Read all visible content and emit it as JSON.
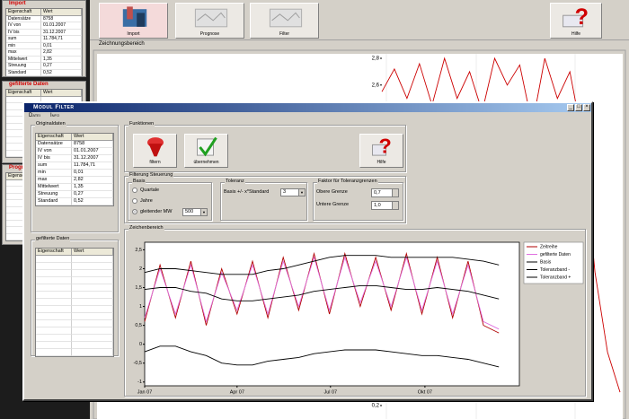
{
  "app": {
    "panels": [
      {
        "title": "Import",
        "header": [
          "Eigenschaft",
          "Wert"
        ],
        "rows": [
          [
            "Datensätze",
            "8758"
          ],
          [
            "IV von",
            "01.01.2007"
          ],
          [
            "IV bis",
            "31.12.2007"
          ],
          [
            "sum",
            "11.784,71"
          ],
          [
            "min",
            "0,01"
          ],
          [
            "max",
            "2,82"
          ],
          [
            "Mittelwert",
            "1,35"
          ],
          [
            "Streuung",
            "0,27"
          ],
          [
            "Standard",
            "0,52"
          ]
        ]
      },
      {
        "title": "gefilterte Daten",
        "header": [
          "Eigenschaft",
          "Wert"
        ]
      },
      {
        "title": "Prognose",
        "header": [
          "Eigenschaft",
          "Wert"
        ]
      }
    ],
    "toolbar": [
      "Import",
      "Prognose",
      "Filter",
      "Hilfe"
    ]
  },
  "dialog": {
    "title": "Modul Filter",
    "menu": [
      "Datei",
      "Info"
    ],
    "original": {
      "title": "Originaldaten",
      "header": [
        "Eigenschaft",
        "Wert"
      ],
      "rows": [
        [
          "Datensätze",
          "8758"
        ],
        [
          "IV von",
          "01.01.2007"
        ],
        [
          "IV bis",
          "31.12.2007"
        ],
        [
          "sum",
          "11.784,71"
        ],
        [
          "min",
          "0,01"
        ],
        [
          "max",
          "2,82"
        ],
        [
          "Mittelwert",
          "1,35"
        ],
        [
          "Streuung",
          "0,27"
        ],
        [
          "Standard",
          "0,52"
        ]
      ]
    },
    "filtered": {
      "title": "gefilterte Daten",
      "header": [
        "Eigenschaft",
        "Wert"
      ]
    },
    "functions": {
      "title": "Funktionen",
      "buttons": [
        "filtern",
        "übernehmen",
        "Hilfe"
      ]
    },
    "control": {
      "title": "Filterung Steuerung",
      "basis": {
        "title": "Basis",
        "options": [
          "Quartale",
          "Jahre",
          "gleitender MW"
        ],
        "window": "500"
      },
      "tolerance": {
        "title": "Toleranz",
        "label": "Basis +/- x*Standard",
        "value": "3"
      },
      "factor": {
        "title": "Faktor für Toleranzgrenzen",
        "upper": {
          "label": "Obere Grenze",
          "value": "0,7"
        },
        "lower": {
          "label": "Untere Grenze",
          "value": "1,0"
        }
      }
    }
  },
  "chart_data": [
    {
      "type": "line",
      "title": "Zeichnungsbereich",
      "categories": [
        null,
        null,
        null,
        null,
        null,
        null,
        null,
        null,
        null,
        null,
        null,
        null,
        null,
        null,
        null,
        null,
        null,
        null,
        null,
        null
      ],
      "values": [
        2.55,
        2.72,
        2.5,
        2.76,
        2.45,
        2.8,
        2.5,
        2.7,
        2.4,
        2.8,
        2.6,
        2.75,
        2.3,
        2.8,
        2.5,
        2.7,
        2.2,
        1.2,
        0.6,
        0.3
      ],
      "color": "#cc0000",
      "ylim": [
        0.2,
        2.8
      ],
      "yticks": [
        {
          "value": 2.8,
          "label": "2,8"
        },
        {
          "value": 2.6,
          "label": "2,6"
        },
        {
          "value": 0.2,
          "label": "0,2"
        }
      ]
    },
    {
      "type": "line",
      "title": "Zeichenbereich",
      "x": [
        0,
        15,
        30,
        45,
        60,
        75,
        90,
        105,
        120,
        135,
        150,
        165,
        180,
        195,
        210,
        225,
        240,
        255,
        270,
        285,
        300,
        315,
        330,
        345
      ],
      "xlim": [
        0,
        365
      ],
      "xticks": [
        {
          "value": 0,
          "label": "Jan 07"
        },
        {
          "value": 90,
          "label": "Apr 07"
        },
        {
          "value": 181,
          "label": "Jul 07"
        },
        {
          "value": 273,
          "label": "Okt 07"
        }
      ],
      "ylim": [
        -1.1,
        2.7
      ],
      "yticks": [
        {
          "value": 2.5,
          "label": "2,5"
        },
        2,
        {
          "value": 1.5,
          "label": "1,5"
        },
        1,
        {
          "value": 0.5,
          "label": "0,5"
        },
        0,
        {
          "value": -0.5,
          "label": "-0,5"
        },
        -1
      ],
      "series": [
        {
          "name": "Zeitreihe",
          "color": "#b00000",
          "values": [
            0.6,
            2.1,
            0.7,
            2.2,
            0.5,
            2.0,
            0.8,
            2.2,
            0.7,
            2.3,
            0.9,
            2.4,
            0.8,
            2.4,
            1.0,
            2.3,
            0.9,
            2.4,
            0.8,
            2.3,
            0.7,
            2.2,
            0.5,
            0.3
          ]
        },
        {
          "name": "gefilterte Daten",
          "color": "#e070e0",
          "values": [
            0.7,
            2.0,
            0.8,
            2.1,
            0.6,
            1.9,
            0.9,
            2.1,
            0.8,
            2.2,
            1.0,
            2.3,
            0.9,
            2.3,
            1.1,
            2.2,
            1.0,
            2.3,
            0.9,
            2.2,
            0.8,
            2.1,
            0.6,
            0.4
          ]
        },
        {
          "name": "Basis",
          "color": "#000000",
          "values": [
            1.45,
            1.5,
            1.5,
            1.4,
            1.35,
            1.2,
            1.15,
            1.15,
            1.2,
            1.25,
            1.3,
            1.4,
            1.45,
            1.5,
            1.55,
            1.55,
            1.5,
            1.45,
            1.45,
            1.5,
            1.45,
            1.4,
            1.3,
            1.2
          ]
        },
        {
          "name": "Toleranzband -",
          "color": "#000000",
          "values": [
            -0.2,
            -0.05,
            -0.05,
            -0.2,
            -0.3,
            -0.5,
            -0.55,
            -0.55,
            -0.45,
            -0.4,
            -0.35,
            -0.25,
            -0.2,
            -0.15,
            -0.15,
            -0.15,
            -0.2,
            -0.25,
            -0.3,
            -0.3,
            -0.35,
            -0.4,
            -0.5,
            -0.6
          ]
        },
        {
          "name": "Toleranzband +",
          "color": "#000000",
          "values": [
            1.9,
            2.0,
            2.0,
            1.95,
            1.9,
            1.85,
            1.85,
            1.85,
            1.95,
            2.0,
            2.1,
            2.2,
            2.3,
            2.35,
            2.35,
            2.35,
            2.3,
            2.3,
            2.3,
            2.3,
            2.3,
            2.25,
            2.2,
            2.1
          ]
        }
      ]
    }
  ]
}
